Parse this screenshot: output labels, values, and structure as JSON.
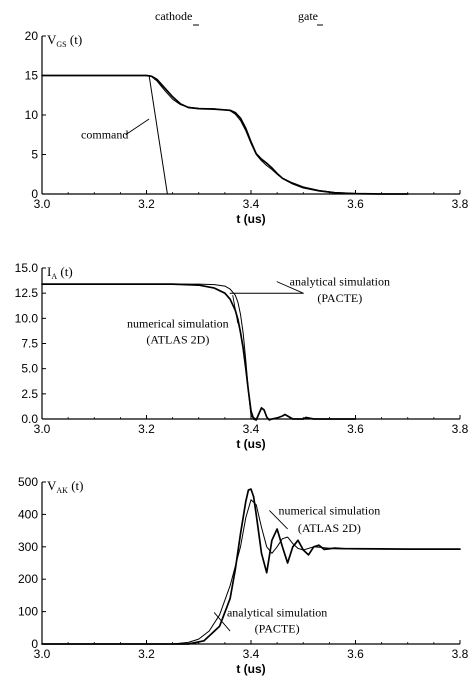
{
  "header": {
    "left": "cathode",
    "right": "gate"
  },
  "chart_data": [
    {
      "type": "line",
      "ylabel": {
        "main": "V",
        "sub": "GS",
        "suffix": " (t)"
      },
      "xlabel": "t (us)",
      "xlim": [
        3.0,
        3.8
      ],
      "ylim": [
        0,
        20
      ],
      "xticks": [
        "3.0",
        "3.2",
        "3.4",
        "3.6",
        "3.8"
      ],
      "xtick_values": [
        3.0,
        3.2,
        3.4,
        3.6,
        3.8
      ],
      "yticks": [
        "0",
        "5",
        "10",
        "15",
        "20"
      ],
      "ytick_values": [
        0,
        5,
        10,
        15,
        20
      ],
      "annotations": [
        {
          "text": "command",
          "x": 3.12,
          "y": 7.0,
          "arrow_to": [
            3.205,
            9.5
          ]
        }
      ],
      "series": [
        {
          "name": "command",
          "width": 1.0,
          "x": [
            3.0,
            3.2,
            3.205,
            3.24
          ],
          "y": [
            15,
            15,
            15,
            0
          ]
        },
        {
          "width": 1.7,
          "x": [
            3.0,
            3.2,
            3.21,
            3.22,
            3.235,
            3.25,
            3.265,
            3.28,
            3.3,
            3.33,
            3.36,
            3.37,
            3.38,
            3.39,
            3.4,
            3.41,
            3.42,
            3.43,
            3.44,
            3.45,
            3.46,
            3.48,
            3.5,
            3.53,
            3.56,
            3.6,
            3.65,
            3.7
          ],
          "y": [
            15,
            15,
            14.9,
            14.5,
            13.4,
            12.3,
            11.4,
            10.95,
            10.8,
            10.75,
            10.6,
            10.3,
            9.6,
            8.3,
            6.6,
            5.1,
            4.4,
            3.9,
            3.3,
            2.6,
            2.0,
            1.3,
            0.8,
            0.4,
            0.15,
            0.05,
            0,
            0
          ]
        },
        {
          "width": 1.0,
          "x": [
            3.0,
            3.2,
            3.21,
            3.22,
            3.235,
            3.25,
            3.265,
            3.28,
            3.3,
            3.33,
            3.36,
            3.37,
            3.38,
            3.39,
            3.4,
            3.41,
            3.42,
            3.43,
            3.44,
            3.45,
            3.46,
            3.48,
            3.5,
            3.53,
            3.56,
            3.6,
            3.65,
            3.7
          ],
          "y": [
            15,
            15,
            14.85,
            14.3,
            13.1,
            12.0,
            11.3,
            11.0,
            10.85,
            10.8,
            10.55,
            10.1,
            9.3,
            8.0,
            6.4,
            5.0,
            4.2,
            3.6,
            3.1,
            2.5,
            2.0,
            1.4,
            0.9,
            0.45,
            0.2,
            0.05,
            0,
            0
          ]
        }
      ]
    },
    {
      "type": "line",
      "ylabel": {
        "main": "I",
        "sub": "A",
        "suffix": " (t)"
      },
      "xlabel": "t (us)",
      "xlim": [
        3.0,
        3.8
      ],
      "ylim": [
        0,
        15
      ],
      "xticks": [
        "3.0",
        "3.2",
        "3.4",
        "3.6",
        "3.8"
      ],
      "xtick_values": [
        3.0,
        3.2,
        3.4,
        3.6,
        3.8
      ],
      "yticks": [
        "0.0",
        "2.5",
        "5.0",
        "7.5",
        "10.0",
        "12.5",
        "15.0"
      ],
      "ytick_values": [
        0,
        2.5,
        5,
        7.5,
        10,
        12.5,
        15
      ],
      "annotations": [
        {
          "text": "analytical simulation",
          "x": 3.57,
          "y": 13.25,
          "arrow_to": [
            3.5,
            12.5
          ]
        },
        {
          "text": "(PACTE)",
          "x": 3.57,
          "y": 11.6
        },
        {
          "text": "numerical simulation",
          "x": 3.26,
          "y": 9.1,
          "arrow_to": [
            3.365,
            12.3
          ]
        },
        {
          "text": "(ATLAS 2D)",
          "x": 3.26,
          "y": 7.5
        }
      ],
      "series": [
        {
          "name": "analytical simulation",
          "width": 1.0,
          "x": [
            3.0,
            3.3,
            3.33,
            3.35,
            3.36,
            3.37,
            3.375,
            3.38,
            3.385,
            3.39,
            3.395,
            3.4,
            3.41
          ],
          "y": [
            13.4,
            13.4,
            13.35,
            13.2,
            12.9,
            12.3,
            11.6,
            10.4,
            8.5,
            5.8,
            2.8,
            0.3,
            0
          ]
        },
        {
          "width": 1.0,
          "x": [
            3.36,
            3.5
          ],
          "y": [
            12.5,
            12.5
          ]
        },
        {
          "name": "numerical simulation",
          "width": 1.7,
          "x": [
            3.0,
            3.25,
            3.3,
            3.33,
            3.35,
            3.36,
            3.37,
            3.375,
            3.38,
            3.385,
            3.39,
            3.395,
            3.4,
            3.405,
            3.41,
            3.415,
            3.42,
            3.425,
            3.43,
            3.435,
            3.44,
            3.45,
            3.46,
            3.465,
            3.47,
            3.48,
            3.5,
            3.505,
            3.51,
            3.52,
            3.6
          ],
          "y": [
            13.4,
            13.4,
            13.3,
            13.0,
            12.5,
            11.9,
            10.8,
            9.9,
            8.6,
            7.0,
            5.0,
            2.8,
            0.8,
            0.0,
            -0.1,
            0.5,
            1.1,
            0.9,
            0.2,
            -0.1,
            0.0,
            0.1,
            0.3,
            0.45,
            0.3,
            0.0,
            0.0,
            0.15,
            0.1,
            0.0,
            0.0
          ]
        }
      ]
    },
    {
      "type": "line",
      "ylabel": {
        "main": "V",
        "sub": "AK",
        "suffix": " (t)"
      },
      "xlabel": "t (us)",
      "xlim": [
        3.0,
        3.8
      ],
      "ylim": [
        0,
        500
      ],
      "xticks": [
        "3.0",
        "3.2",
        "3.4",
        "3.6",
        "3.8"
      ],
      "xtick_values": [
        3.0,
        3.2,
        3.4,
        3.6,
        3.8
      ],
      "yticks": [
        "0",
        "100",
        "200",
        "300",
        "400",
        "500"
      ],
      "ytick_values": [
        0,
        100,
        200,
        300,
        400,
        500
      ],
      "annotations": [
        {
          "text": "numerical simulation",
          "x": 3.55,
          "y": 400,
          "arrow_to": [
            3.47,
            355
          ]
        },
        {
          "text": "(ATLAS 2D)",
          "x": 3.55,
          "y": 345
        },
        {
          "text": "analytical simulation",
          "x": 3.45,
          "y": 85,
          "arrow_to": [
            3.36,
            40
          ]
        },
        {
          "text": "(PACTE)",
          "x": 3.45,
          "y": 35
        }
      ],
      "series": [
        {
          "name": "numerical simulation",
          "width": 1.7,
          "x": [
            3.0,
            3.28,
            3.31,
            3.34,
            3.36,
            3.37,
            3.38,
            3.39,
            3.395,
            3.4,
            3.405,
            3.41,
            3.42,
            3.43,
            3.44,
            3.45,
            3.46,
            3.47,
            3.48,
            3.49,
            3.5,
            3.51,
            3.52,
            3.53,
            3.54,
            3.56,
            3.58,
            3.6,
            3.7,
            3.8
          ],
          "y": [
            0,
            0,
            10,
            55,
            140,
            230,
            340,
            440,
            475,
            478,
            455,
            400,
            280,
            220,
            320,
            355,
            300,
            250,
            300,
            320,
            290,
            275,
            300,
            305,
            292,
            296,
            294,
            294,
            293,
            293
          ]
        },
        {
          "name": "analytical simulation",
          "width": 1.0,
          "x": [
            3.0,
            3.25,
            3.28,
            3.3,
            3.32,
            3.34,
            3.36,
            3.38,
            3.39,
            3.4,
            3.41,
            3.42,
            3.43,
            3.44,
            3.45,
            3.46,
            3.47,
            3.48,
            3.49,
            3.5,
            3.52,
            3.54,
            3.56,
            3.6,
            3.7,
            3.8
          ],
          "y": [
            0,
            0,
            5,
            15,
            40,
            90,
            180,
            300,
            390,
            445,
            430,
            360,
            300,
            280,
            300,
            325,
            330,
            310,
            295,
            290,
            300,
            297,
            294,
            293,
            293,
            293
          ]
        }
      ]
    }
  ]
}
